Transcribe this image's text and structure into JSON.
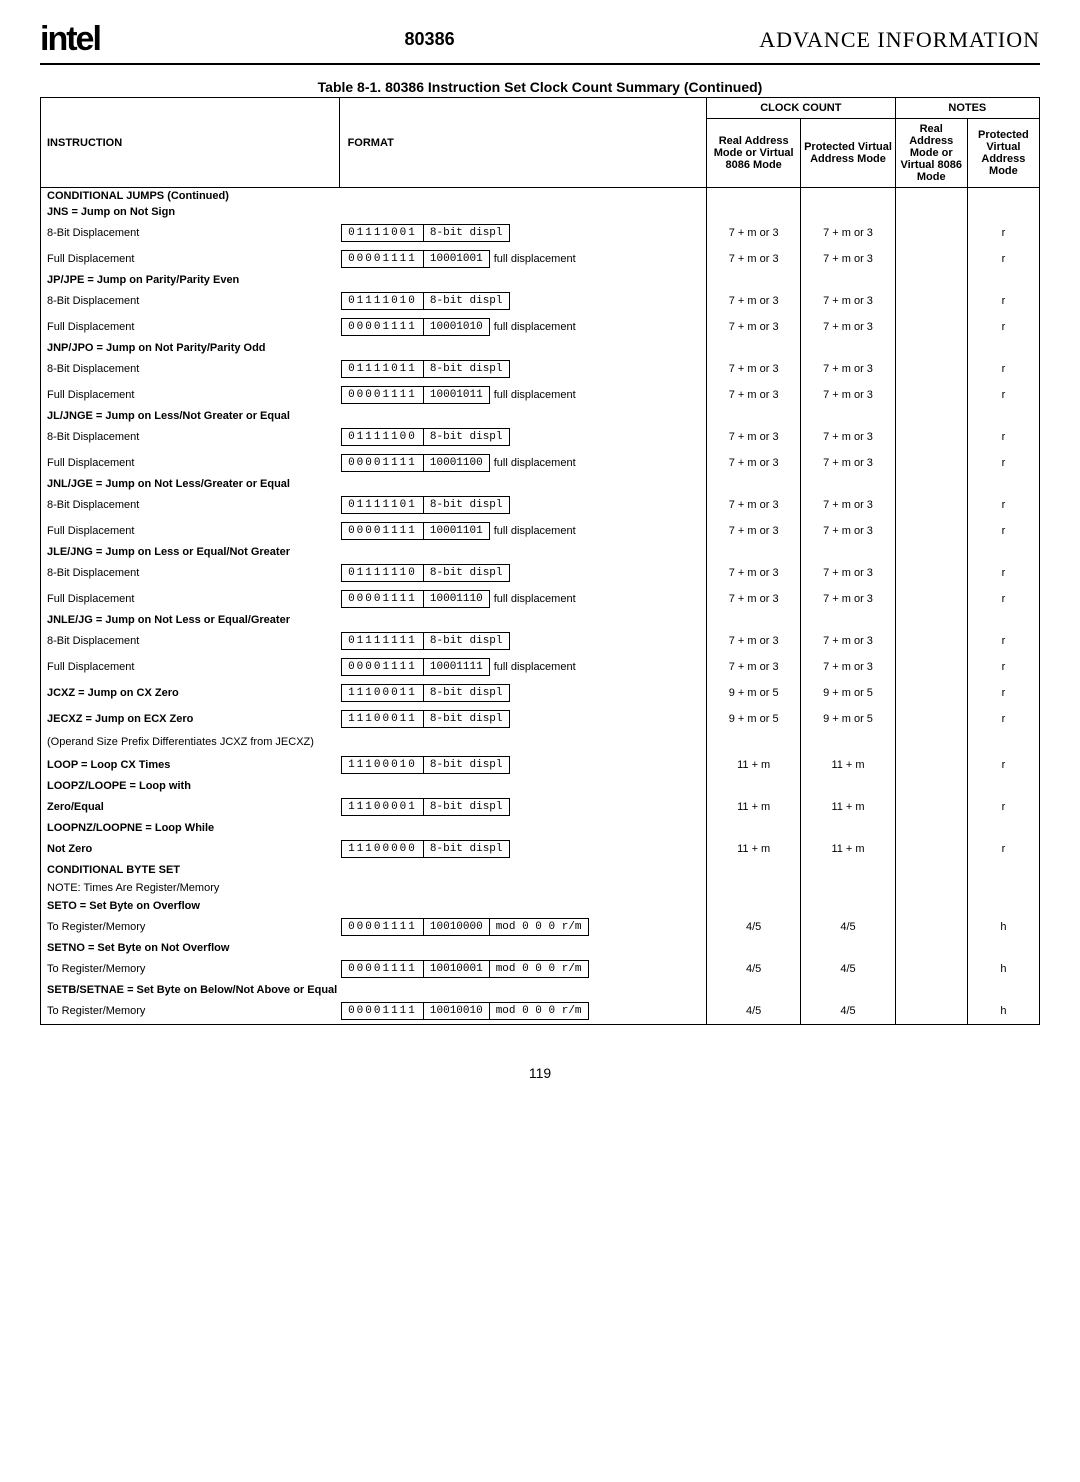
{
  "header": {
    "logo": "intel",
    "chip": "80386",
    "advance": "ADVANCE INFORMATION"
  },
  "tableTitle": "Table 8-1. 80386 Instruction Set Clock Count Summary  (Continued)",
  "columns": {
    "instr": "INSTRUCTION",
    "format": "FORMAT",
    "clock": "CLOCK COUNT",
    "notes": "NOTES",
    "realAddr": "Real Address Mode or Virtual 8086 Mode",
    "protVirt": "Protected Virtual Address Mode"
  },
  "condJumpsCont": "CONDITIONAL JUMPS  (Continued)",
  "groups": [
    {
      "title": "JNS = Jump on Not Sign",
      "rows": [
        {
          "label": "8-Bit Displacement",
          "b1": "01111001",
          "b2": "8-bit displ",
          "ext": "",
          "c1": "7 + m or 3",
          "c2": "7 + m or 3",
          "n1": "",
          "n2": "r"
        },
        {
          "label": "Full Displacement",
          "b1": "00001111",
          "b2": "10001001",
          "ext": "full displacement",
          "c1": "7 + m or 3",
          "c2": "7 + m or 3",
          "n1": "",
          "n2": "r"
        }
      ]
    },
    {
      "title": "JP/JPE = Jump on Parity/Parity Even",
      "rows": [
        {
          "label": "8-Bit Displacement",
          "b1": "01111010",
          "b2": "8-bit displ",
          "ext": "",
          "c1": "7 + m or 3",
          "c2": "7 + m or 3",
          "n1": "",
          "n2": "r"
        },
        {
          "label": "Full Displacement",
          "b1": "00001111",
          "b2": "10001010",
          "ext": "full displacement",
          "c1": "7 + m or 3",
          "c2": "7 + m or 3",
          "n1": "",
          "n2": "r"
        }
      ]
    },
    {
      "title": "JNP/JPO = Jump on Not Parity/Parity Odd",
      "rows": [
        {
          "label": "8-Bit Displacement",
          "b1": "01111011",
          "b2": "8-bit displ",
          "ext": "",
          "c1": "7 + m or 3",
          "c2": "7 + m or 3",
          "n1": "",
          "n2": "r"
        },
        {
          "label": "Full Displacement",
          "b1": "00001111",
          "b2": "10001011",
          "ext": "full displacement",
          "c1": "7 + m or 3",
          "c2": "7 + m or 3",
          "n1": "",
          "n2": "r"
        }
      ]
    },
    {
      "title": "JL/JNGE = Jump on Less/Not Greater or Equal",
      "rows": [
        {
          "label": "8-Bit Displacement",
          "b1": "01111100",
          "b2": "8-bit displ",
          "ext": "",
          "c1": "7 + m or 3",
          "c2": "7 + m or 3",
          "n1": "",
          "n2": "r"
        },
        {
          "label": "Full Displacement",
          "b1": "00001111",
          "b2": "10001100",
          "ext": "full displacement",
          "c1": "7 + m or 3",
          "c2": "7 + m or 3",
          "n1": "",
          "n2": "r"
        }
      ]
    },
    {
      "title": "JNL/JGE = Jump on Not Less/Greater or Equal",
      "rows": [
        {
          "label": "8-Bit Displacement",
          "b1": "01111101",
          "b2": "8-bit displ",
          "ext": "",
          "c1": "7 + m or 3",
          "c2": "7 + m or 3",
          "n1": "",
          "n2": "r"
        },
        {
          "label": "Full Displacement",
          "b1": "00001111",
          "b2": "10001101",
          "ext": "full displacement",
          "c1": "7 + m or 3",
          "c2": "7 + m or 3",
          "n1": "",
          "n2": "r"
        }
      ]
    },
    {
      "title": "JLE/JNG = Jump on Less or Equal/Not Greater",
      "rows": [
        {
          "label": "8-Bit Displacement",
          "b1": "01111110",
          "b2": "8-bit displ",
          "ext": "",
          "c1": "7 + m or 3",
          "c2": "7 + m or 3",
          "n1": "",
          "n2": "r"
        },
        {
          "label": "Full Displacement",
          "b1": "00001111",
          "b2": "10001110",
          "ext": "full displacement",
          "c1": "7 + m or 3",
          "c2": "7 + m or 3",
          "n1": "",
          "n2": "r"
        }
      ]
    },
    {
      "title": "JNLE/JG = Jump on Not Less or Equal/Greater",
      "rows": [
        {
          "label": "8-Bit Displacement",
          "b1": "01111111",
          "b2": "8-bit displ",
          "ext": "",
          "c1": "7 + m or 3",
          "c2": "7 + m or 3",
          "n1": "",
          "n2": "r"
        },
        {
          "label": "Full Displacement",
          "b1": "00001111",
          "b2": "10001111",
          "ext": "full displacement",
          "c1": "7 + m or 3",
          "c2": "7 + m or 3",
          "n1": "",
          "n2": "r"
        }
      ]
    }
  ],
  "singles": [
    {
      "title": "JCXZ = Jump on CX Zero",
      "b1": "11100011",
      "b2": "8-bit displ",
      "ext": "",
      "c1": "9 + m or 5",
      "c2": "9 + m or 5",
      "n1": "",
      "n2": "r"
    },
    {
      "title": "JECXZ = Jump on ECX Zero",
      "b1": "11100011",
      "b2": "8-bit displ",
      "ext": "",
      "c1": "9 + m or 5",
      "c2": "9 + m or 5",
      "n1": "",
      "n2": "r"
    }
  ],
  "opnote": "(Operand Size Prefix Differentiates JCXZ from JECXZ)",
  "loops": [
    {
      "title": "LOOP = Loop CX Times",
      "b1": "11100010",
      "b2": "8-bit displ",
      "c1": "11 + m",
      "c2": "11 + m",
      "n2": "r"
    },
    {
      "title": "LOOPZ/LOOPE = Loop with",
      "sub": "Zero/Equal",
      "b1": "11100001",
      "b2": "8-bit displ",
      "c1": "11 + m",
      "c2": "11 + m",
      "n2": "r"
    },
    {
      "title": "LOOPNZ/LOOPNE = Loop While",
      "sub": "Not Zero",
      "b1": "11100000",
      "b2": "8-bit displ",
      "c1": "11 + m",
      "c2": "11 + m",
      "n2": "r"
    }
  ],
  "condByte": {
    "head": "CONDITIONAL BYTE SET",
    "note": "NOTE: Times Are Register/Memory",
    "rows": [
      {
        "title": "SETO = Set Byte on Overflow",
        "sub": "To Register/Memory",
        "b1": "00001111",
        "b2": "10010000",
        "b3": "mod 0 0 0    r/m",
        "c1": "4/5",
        "c2": "4/5",
        "n2": "h"
      },
      {
        "title": "SETNO = Set Byte on Not Overflow",
        "sub": "To Register/Memory",
        "b1": "00001111",
        "b2": "10010001",
        "b3": "mod 0 0 0    r/m",
        "c1": "4/5",
        "c2": "4/5",
        "n2": "h"
      },
      {
        "title": "SETB/SETNAE = Set Byte on Below/Not Above or Equal",
        "sub": "To Register/Memory",
        "b1": "00001111",
        "b2": "10010010",
        "b3": "mod 0 0 0    r/m",
        "c1": "4/5",
        "c2": "4/5",
        "n2": "h"
      }
    ]
  },
  "pageNum": "119"
}
